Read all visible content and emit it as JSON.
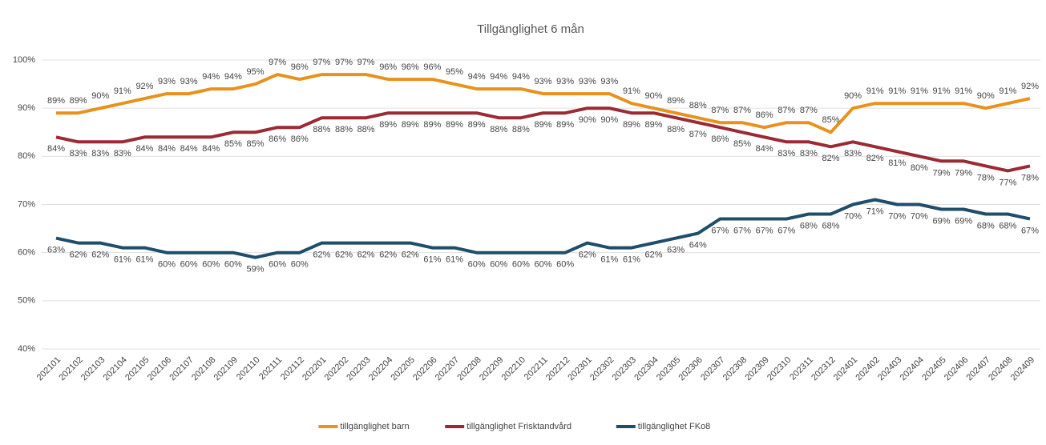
{
  "chart_data": {
    "type": "line",
    "title": "Tillgänglighet 6 mån",
    "categories": [
      "202101",
      "202102",
      "202103",
      "202104",
      "202105",
      "202106",
      "202107",
      "202108",
      "202109",
      "202110",
      "202111",
      "202112",
      "202201",
      "202202",
      "202203",
      "202204",
      "202205",
      "202206",
      "202207",
      "202208",
      "202209",
      "202210",
      "202211",
      "202212",
      "202301",
      "202302",
      "202303",
      "202304",
      "202305",
      "202306",
      "202307",
      "202308",
      "202309",
      "202310",
      "202311",
      "202312",
      "202401",
      "202402",
      "202403",
      "202404",
      "202405",
      "202406",
      "202407",
      "202408",
      "202409"
    ],
    "series": [
      {
        "name": "tillgänglighet barn",
        "color": "#e8921e",
        "values": [
          89,
          89,
          90,
          91,
          92,
          93,
          93,
          94,
          94,
          95,
          97,
          96,
          97,
          97,
          97,
          96,
          96,
          96,
          95,
          94,
          94,
          94,
          93,
          93,
          93,
          93,
          91,
          90,
          89,
          88,
          87,
          87,
          86,
          87,
          87,
          85,
          90,
          91,
          91,
          91,
          91,
          91,
          90,
          91,
          92
        ],
        "value_labels": [
          "89%",
          "89%",
          "90%",
          "91%",
          "92%",
          "93%",
          "93%",
          "94%",
          "94%",
          "95%",
          "97%",
          "96%",
          "97%",
          "97%",
          "97%",
          "96%",
          "96%",
          "96%",
          "95%",
          "94%",
          "94%",
          "94%",
          "93%",
          "93%",
          "93%",
          "93%",
          "91%",
          "90%",
          "89%",
          "88%",
          "87%",
          "87%",
          "86%",
          "87%",
          "87%",
          "85%",
          "90%",
          "91%",
          "91%",
          "91%",
          "91%",
          "91%",
          "90%",
          "91%",
          "92%"
        ]
      },
      {
        "name": "tillgänglighet Frisktandvård",
        "color": "#9b2a35",
        "values": [
          84,
          83,
          83,
          83,
          84,
          84,
          84,
          84,
          85,
          85,
          86,
          86,
          88,
          88,
          88,
          89,
          89,
          89,
          89,
          89,
          88,
          88,
          89,
          89,
          90,
          90,
          89,
          89,
          88,
          87,
          86,
          85,
          84,
          83,
          83,
          82,
          83,
          82,
          81,
          80,
          79,
          79,
          78,
          77,
          78
        ],
        "value_labels": [
          "84%",
          "83%",
          "83%",
          "83%",
          "84%",
          "84%",
          "84%",
          "84%",
          "85%",
          "85%",
          "86%",
          "86%",
          "88%",
          "88%",
          "88%",
          "89%",
          "89%",
          "89%",
          "89%",
          "89%",
          "88%",
          "88%",
          "89%",
          "89%",
          "90%",
          "90%",
          "89%",
          "89%",
          "88%",
          "87%",
          "86%",
          "85%",
          "84%",
          "83%",
          "83%",
          "82%",
          "83%",
          "82%",
          "81%",
          "80%",
          "79%",
          "79%",
          "78%",
          "77%",
          "78%"
        ]
      },
      {
        "name": "tillgänglighet FKo8",
        "color": "#1f4e6b",
        "values": [
          63,
          62,
          62,
          61,
          61,
          60,
          60,
          60,
          60,
          59,
          60,
          60,
          62,
          62,
          62,
          62,
          62,
          61,
          61,
          60,
          60,
          60,
          60,
          60,
          62,
          61,
          61,
          62,
          63,
          64,
          67,
          67,
          67,
          67,
          68,
          68,
          70,
          71,
          70,
          70,
          69,
          69,
          68,
          68,
          67
        ],
        "value_labels": [
          "63%",
          "62%",
          "62%",
          "61%",
          "61%",
          "60%",
          "60%",
          "60%",
          "60%",
          "59%",
          "60%",
          "60%",
          "62%",
          "62%",
          "62%",
          "62%",
          "62%",
          "61%",
          "61%",
          "60%",
          "60%",
          "60%",
          "60%",
          "60%",
          "62%",
          "61%",
          "61%",
          "62%",
          "63%",
          "64%",
          "67%",
          "67%",
          "67%",
          "67%",
          "68%",
          "68%",
          "70%",
          "71%",
          "70%",
          "70%",
          "69%",
          "69%",
          "68%",
          "68%",
          "67%"
        ]
      }
    ],
    "ylim": [
      40,
      100
    ],
    "yticks": [
      {
        "value": 40,
        "label": "40%"
      },
      {
        "value": 50,
        "label": "50%"
      },
      {
        "value": 60,
        "label": "60%"
      },
      {
        "value": 70,
        "label": "70%"
      },
      {
        "value": 80,
        "label": "80%"
      },
      {
        "value": 90,
        "label": "90%"
      },
      {
        "value": 100,
        "label": "100%"
      }
    ],
    "grid": true,
    "legend": "bottom"
  }
}
